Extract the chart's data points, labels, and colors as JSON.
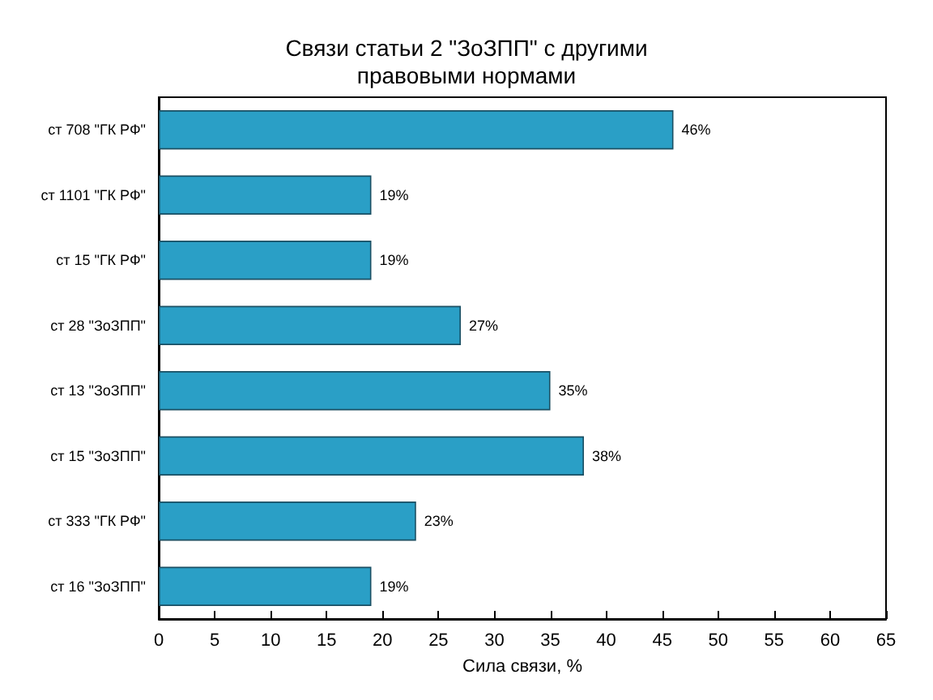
{
  "chart_data": {
    "type": "bar",
    "orientation": "horizontal",
    "title": "Связи статьи 2 \"ЗоЗПП\" с другими\nправовыми нормами",
    "xlabel": "Сила связи, %",
    "categories": [
      "ст 708 \"ГК РФ\"",
      "ст 1101 \"ГК РФ\"",
      "ст 15 \"ГК РФ\"",
      "ст 28 \"ЗоЗПП\"",
      "ст 13 \"ЗоЗПП\"",
      "ст 15 \"ЗоЗПП\"",
      "ст 333 \"ГК РФ\"",
      "ст 16 \"ЗоЗПП\""
    ],
    "values": [
      46,
      19,
      19,
      27,
      35,
      38,
      23,
      19
    ],
    "value_labels": [
      "46%",
      "19%",
      "19%",
      "27%",
      "35%",
      "38%",
      "23%",
      "19%"
    ],
    "color": "#2a9fc6",
    "xlim": [
      0,
      65
    ],
    "xticks": [
      0,
      5,
      10,
      15,
      20,
      25,
      30,
      35,
      40,
      45,
      50,
      55,
      60,
      65
    ],
    "grid": false
  }
}
